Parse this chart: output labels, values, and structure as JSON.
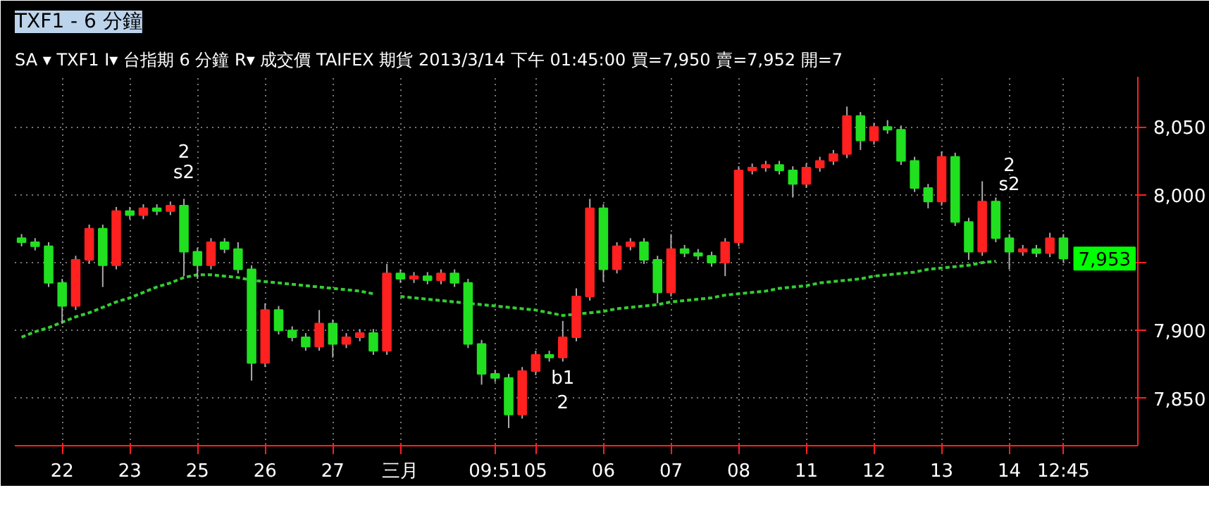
{
  "chart_data": {
    "type": "candlestick",
    "title": "TXF1 - 6 分鐘",
    "subtitle": "SA ▾  TXF1  I▾  台指期  6 分鐘  R▾  成交價  TAIFEX  期貨  2013/3/14  下午  01:45:00  買=7,950  賣=7,952  開=7",
    "categories": [
      null,
      null,
      null,
      "22",
      null,
      null,
      null,
      null,
      "23",
      null,
      null,
      null,
      null,
      "25",
      null,
      null,
      null,
      null,
      "26",
      null,
      null,
      null,
      null,
      "27",
      null,
      null,
      null,
      null,
      "三月",
      null,
      null,
      null,
      null,
      null,
      null,
      "09:51",
      null,
      null,
      "05",
      null,
      null,
      null,
      null,
      "06",
      null,
      null,
      null,
      null,
      "07",
      null,
      null,
      null,
      null,
      "08",
      null,
      null,
      null,
      null,
      "11",
      null,
      null,
      null,
      null,
      "12",
      null,
      null,
      null,
      null,
      "13",
      null,
      null,
      null,
      null,
      "14",
      null,
      null,
      null,
      "12:45"
    ],
    "ohlc": [
      [
        7968,
        7971,
        7962,
        7965
      ],
      [
        7965,
        7968,
        7959,
        7962
      ],
      [
        7962,
        7965,
        7932,
        7935
      ],
      [
        7935,
        7938,
        7905,
        7918
      ],
      [
        7918,
        7955,
        7915,
        7952
      ],
      [
        7952,
        7978,
        7949,
        7975
      ],
      [
        7975,
        7978,
        7932,
        7948
      ],
      [
        7948,
        7991,
        7945,
        7988
      ],
      [
        7988,
        7991,
        7982,
        7985
      ],
      [
        7985,
        7993,
        7982,
        7990
      ],
      [
        7990,
        7993,
        7985,
        7988
      ],
      [
        7988,
        7995,
        7985,
        7992
      ],
      [
        7992,
        7997,
        7940,
        7958
      ],
      [
        7958,
        7961,
        7938,
        7948
      ],
      [
        7948,
        7968,
        7945,
        7965
      ],
      [
        7965,
        7968,
        7957,
        7960
      ],
      [
        7960,
        7965,
        7942,
        7945
      ],
      [
        7945,
        7948,
        7863,
        7876
      ],
      [
        7876,
        7920,
        7873,
        7915
      ],
      [
        7915,
        7918,
        7897,
        7900
      ],
      [
        7900,
        7903,
        7892,
        7895
      ],
      [
        7895,
        7898,
        7885,
        7888
      ],
      [
        7888,
        7915,
        7885,
        7905
      ],
      [
        7905,
        7908,
        7880,
        7890
      ],
      [
        7890,
        7898,
        7887,
        7895
      ],
      [
        7895,
        7901,
        7892,
        7898
      ],
      [
        7898,
        7901,
        7882,
        7885
      ],
      [
        7885,
        7949,
        7882,
        7942
      ],
      [
        7942,
        7945,
        7935,
        7938
      ],
      [
        7938,
        7943,
        7935,
        7940
      ],
      [
        7940,
        7943,
        7934,
        7937
      ],
      [
        7937,
        7945,
        7934,
        7942
      ],
      [
        7942,
        7945,
        7932,
        7935
      ],
      [
        7935,
        7938,
        7887,
        7890
      ],
      [
        7890,
        7893,
        7860,
        7868
      ],
      [
        7868,
        7871,
        7862,
        7865
      ],
      [
        7865,
        7868,
        7828,
        7838
      ],
      [
        7838,
        7873,
        7835,
        7870
      ],
      [
        7870,
        7885,
        7867,
        7882
      ],
      [
        7882,
        7885,
        7877,
        7880
      ],
      [
        7880,
        7907,
        7877,
        7895
      ],
      [
        7895,
        7931,
        7892,
        7925
      ],
      [
        7925,
        7997,
        7922,
        7990
      ],
      [
        7990,
        7993,
        7936,
        7945
      ],
      [
        7945,
        7965,
        7942,
        7962
      ],
      [
        7962,
        7968,
        7959,
        7965
      ],
      [
        7965,
        7968,
        7949,
        7952
      ],
      [
        7952,
        7955,
        7920,
        7928
      ],
      [
        7928,
        7971,
        7925,
        7960
      ],
      [
        7960,
        7963,
        7954,
        7957
      ],
      [
        7957,
        7960,
        7952,
        7955
      ],
      [
        7955,
        7958,
        7947,
        7950
      ],
      [
        7950,
        7968,
        7940,
        7965
      ],
      [
        7965,
        8021,
        7962,
        8018
      ],
      [
        8018,
        8023,
        8015,
        8020
      ],
      [
        8020,
        8025,
        8017,
        8022
      ],
      [
        8022,
        8025,
        8015,
        8018
      ],
      [
        8018,
        8021,
        7998,
        8008
      ],
      [
        8008,
        8023,
        8005,
        8020
      ],
      [
        8020,
        8028,
        8017,
        8025
      ],
      [
        8025,
        8033,
        8022,
        8030
      ],
      [
        8030,
        8065,
        8027,
        8058
      ],
      [
        8058,
        8061,
        8033,
        8040
      ],
      [
        8040,
        8053,
        8037,
        8050
      ],
      [
        8050,
        8055,
        8045,
        8048
      ],
      [
        8048,
        8051,
        8022,
        8025
      ],
      [
        8025,
        8028,
        8002,
        8005
      ],
      [
        8005,
        8008,
        7990,
        7995
      ],
      [
        7995,
        8032,
        7992,
        8028
      ],
      [
        8028,
        8031,
        7977,
        7980
      ],
      [
        7980,
        7983,
        7952,
        7958
      ],
      [
        7958,
        8010,
        7955,
        7995
      ],
      [
        7995,
        7998,
        7965,
        7968
      ],
      [
        7968,
        7971,
        7945,
        7958
      ],
      [
        7958,
        7963,
        7955,
        7960
      ],
      [
        7960,
        7963,
        7954,
        7957
      ],
      [
        7957,
        7972,
        7954,
        7968
      ],
      [
        7968,
        7971,
        7950,
        7953
      ]
    ],
    "series": [
      {
        "type": "line",
        "color": "#33cc33",
        "line_style": "dotted",
        "values": [
          7895,
          7899,
          7902,
          7906,
          7910,
          7913,
          7917,
          7921,
          7924,
          7928,
          7932,
          7935,
          7939,
          7941,
          7941,
          7940,
          7939,
          7937,
          7936,
          7935,
          7934,
          7933,
          7932,
          7931,
          7930,
          7929,
          7927,
          null,
          7925,
          7924,
          7923,
          7922,
          7921,
          7920,
          7919,
          7918,
          7917,
          7916,
          7915,
          7913,
          7911,
          7912,
          7913,
          7914,
          7916,
          7917,
          7918,
          7919,
          7921,
          7922,
          7923,
          7924,
          7926,
          7927,
          7928,
          7929,
          7931,
          7932,
          7933,
          7935,
          7936,
          7937,
          7938,
          7940,
          7941,
          7942,
          7943,
          7945,
          7946,
          7947,
          7948,
          7950,
          7951,
          null,
          null,
          null,
          null,
          null
        ]
      }
    ],
    "ylim": [
      7815,
      8087
    ],
    "yticks": [
      {
        "value": 7850,
        "label": "7,850"
      },
      {
        "value": 7900,
        "label": "7,900"
      },
      {
        "value": 7950,
        "label": null
      },
      {
        "value": 8000,
        "label": "8,000"
      },
      {
        "value": 8050,
        "label": "8,050"
      }
    ],
    "grid": true,
    "annotations": [
      "2",
      "s2",
      "b1",
      "2",
      "2",
      "s2",
      "7,953"
    ]
  }
}
